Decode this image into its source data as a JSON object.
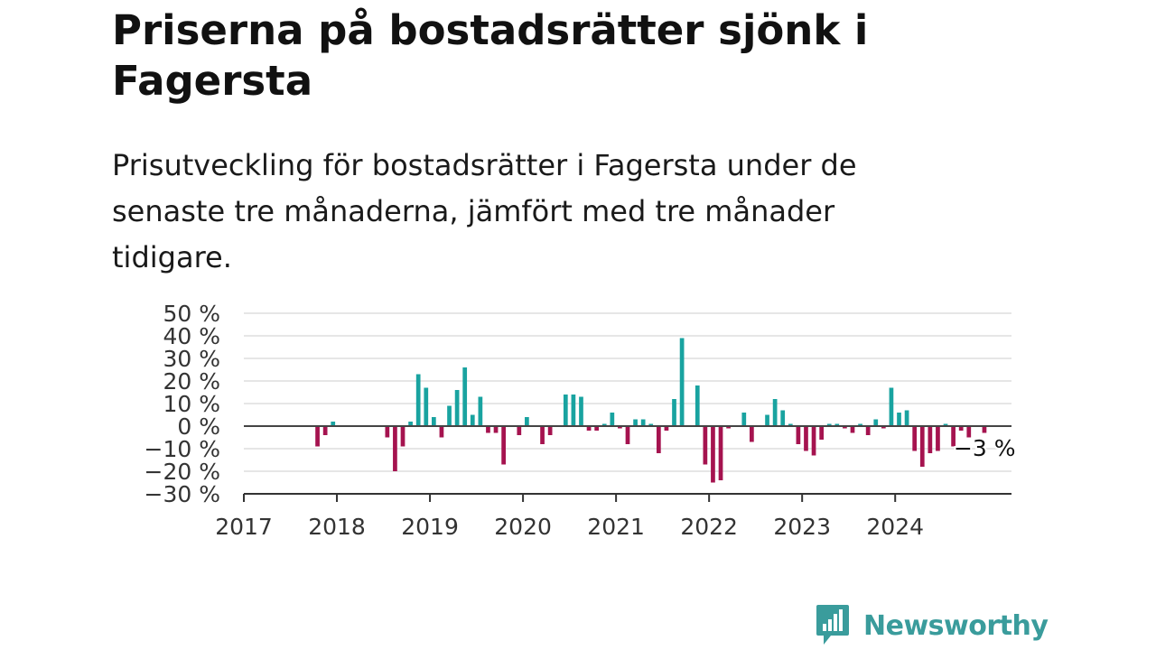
{
  "header": {
    "title": "Priserna på bostadsrätter sjönk i Fagersta",
    "subtitle": "Prisutveckling för bostadsrätter i Fagersta under de senaste tre månaderna, jämfört med tre månader tidigare."
  },
  "brand": {
    "name": "Newsworthy",
    "icon": "newsworthy-logo-icon",
    "color": "#3a9c9c"
  },
  "chart_data": {
    "type": "bar",
    "x_unit": "month",
    "y_unit": "%",
    "ylim": [
      -30,
      50
    ],
    "y_ticks": [
      50,
      40,
      30,
      20,
      10,
      0,
      -10,
      -20,
      -30
    ],
    "y_tick_labels": [
      "50 %",
      "40 %",
      "30 %",
      "20 %",
      "10 %",
      "0 %",
      "−10 %",
      "−20 %",
      "−30 %"
    ],
    "x_tick_labels": [
      "2017",
      "2018",
      "2019",
      "2020",
      "2021",
      "2022",
      "2023",
      "2024"
    ],
    "grid": true,
    "colors": {
      "positive": "#19a3a0",
      "negative": "#a5134f",
      "grid": "#dddddd",
      "axis": "#333333"
    },
    "annotation": {
      "text": "−3 %",
      "month": "2024-12"
    },
    "series": [
      {
        "values": [
          {
            "month": "2017-10",
            "value": -9
          },
          {
            "month": "2017-11",
            "value": -4
          },
          {
            "month": "2017-12",
            "value": 2
          },
          {
            "month": "2018-07",
            "value": -5
          },
          {
            "month": "2018-08",
            "value": -20
          },
          {
            "month": "2018-09",
            "value": -9
          },
          {
            "month": "2018-10",
            "value": 2
          },
          {
            "month": "2018-11",
            "value": 23
          },
          {
            "month": "2018-12",
            "value": 17
          },
          {
            "month": "2019-01",
            "value": 4
          },
          {
            "month": "2019-02",
            "value": -5
          },
          {
            "month": "2019-03",
            "value": 9
          },
          {
            "month": "2019-04",
            "value": 16
          },
          {
            "month": "2019-05",
            "value": 26
          },
          {
            "month": "2019-06",
            "value": 5
          },
          {
            "month": "2019-07",
            "value": 13
          },
          {
            "month": "2019-08",
            "value": -3
          },
          {
            "month": "2019-09",
            "value": -3
          },
          {
            "month": "2019-10",
            "value": -17
          },
          {
            "month": "2019-12",
            "value": -4
          },
          {
            "month": "2020-01",
            "value": 4
          },
          {
            "month": "2020-03",
            "value": -8
          },
          {
            "month": "2020-04",
            "value": -4
          },
          {
            "month": "2020-06",
            "value": 14
          },
          {
            "month": "2020-07",
            "value": 14
          },
          {
            "month": "2020-08",
            "value": 13
          },
          {
            "month": "2020-09",
            "value": -2
          },
          {
            "month": "2020-10",
            "value": -2
          },
          {
            "month": "2020-11",
            "value": 1
          },
          {
            "month": "2020-12",
            "value": 6
          },
          {
            "month": "2021-01",
            "value": -1
          },
          {
            "month": "2021-02",
            "value": -8
          },
          {
            "month": "2021-03",
            "value": 3
          },
          {
            "month": "2021-04",
            "value": 3
          },
          {
            "month": "2021-05",
            "value": 1
          },
          {
            "month": "2021-06",
            "value": -12
          },
          {
            "month": "2021-07",
            "value": -2
          },
          {
            "month": "2021-08",
            "value": 12
          },
          {
            "month": "2021-09",
            "value": 39
          },
          {
            "month": "2021-11",
            "value": 18
          },
          {
            "month": "2021-12",
            "value": -17
          },
          {
            "month": "2022-01",
            "value": -25
          },
          {
            "month": "2022-02",
            "value": -24
          },
          {
            "month": "2022-03",
            "value": -1
          },
          {
            "month": "2022-05",
            "value": 6
          },
          {
            "month": "2022-06",
            "value": -7
          },
          {
            "month": "2022-08",
            "value": 5
          },
          {
            "month": "2022-09",
            "value": 12
          },
          {
            "month": "2022-10",
            "value": 7
          },
          {
            "month": "2022-11",
            "value": 1
          },
          {
            "month": "2022-12",
            "value": -8
          },
          {
            "month": "2023-01",
            "value": -11
          },
          {
            "month": "2023-02",
            "value": -13
          },
          {
            "month": "2023-03",
            "value": -6
          },
          {
            "month": "2023-04",
            "value": 1
          },
          {
            "month": "2023-05",
            "value": 1
          },
          {
            "month": "2023-06",
            "value": -1
          },
          {
            "month": "2023-07",
            "value": -3
          },
          {
            "month": "2023-08",
            "value": 1
          },
          {
            "month": "2023-09",
            "value": -4
          },
          {
            "month": "2023-10",
            "value": 3
          },
          {
            "month": "2023-11",
            "value": -1
          },
          {
            "month": "2023-12",
            "value": 17
          },
          {
            "month": "2024-01",
            "value": 6
          },
          {
            "month": "2024-02",
            "value": 7
          },
          {
            "month": "2024-03",
            "value": -11
          },
          {
            "month": "2024-04",
            "value": -18
          },
          {
            "month": "2024-05",
            "value": -12
          },
          {
            "month": "2024-06",
            "value": -11
          },
          {
            "month": "2024-07",
            "value": 1
          },
          {
            "month": "2024-08",
            "value": -9
          },
          {
            "month": "2024-09",
            "value": -2
          },
          {
            "month": "2024-10",
            "value": -5
          },
          {
            "month": "2024-12",
            "value": -3
          }
        ]
      }
    ]
  }
}
